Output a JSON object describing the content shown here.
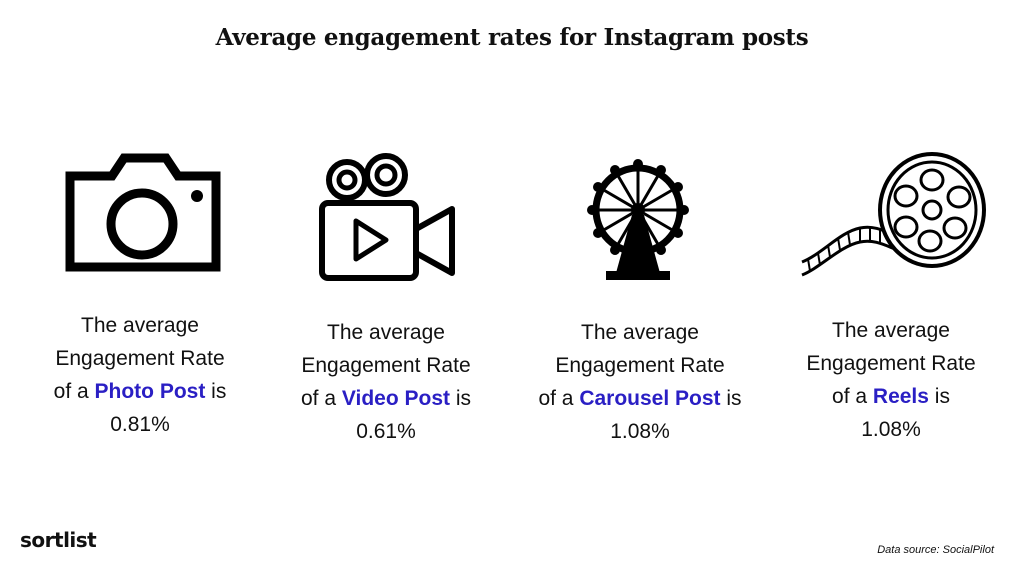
{
  "title": "Average engagement rates for Instagram posts",
  "cards": [
    {
      "icon": "camera-icon",
      "line1": "The average",
      "line2": "Engagement Rate",
      "prefix": "of a ",
      "highlight": "Photo Post",
      "suffix": " is",
      "value": "0.81%"
    },
    {
      "icon": "video-camera-icon",
      "line1": "The average",
      "line2": "Engagement Rate",
      "prefix": "of a ",
      "highlight": "Video Post",
      "suffix": " is",
      "value": "0.61%"
    },
    {
      "icon": "ferris-wheel-icon",
      "line1": "The average",
      "line2": "Engagement Rate",
      "prefix": "of a ",
      "highlight": "Carousel Post",
      "suffix": " is",
      "value": "1.08%"
    },
    {
      "icon": "film-reel-icon",
      "line1": "The average",
      "line2": "Engagement Rate",
      "prefix": "of a ",
      "highlight": "Reels",
      "suffix": " is",
      "value": "1.08%"
    }
  ],
  "logo": "sortlist",
  "source": "Data source: SocialPilot",
  "colors": {
    "highlight": "#2a1fc4",
    "text": "#111111",
    "background": "#ffffff"
  }
}
